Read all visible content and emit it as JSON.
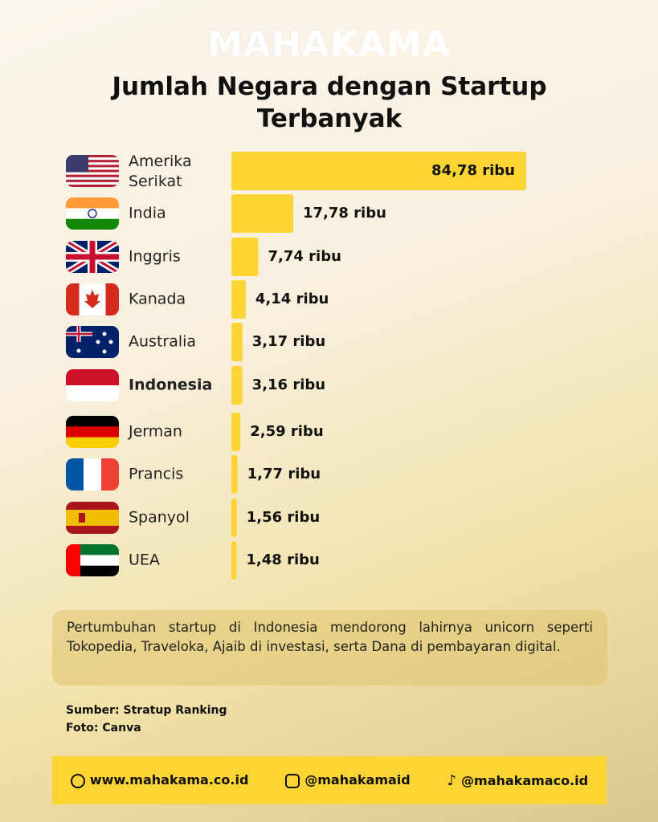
{
  "logo_parts": [
    "MAHA",
    "KAMA"
  ],
  "chart_data": {
    "type": "bar",
    "orientation": "horizontal",
    "title": "Jumlah Negara dengan Startup Terbanyak",
    "categories": [
      "Amerika Serikat",
      "India",
      "Inggris",
      "Kanada",
      "Australia",
      "Indonesia",
      "Jerman",
      "Prancis",
      "Spanyol",
      "UEA"
    ],
    "values": [
      84.78,
      17.78,
      7.74,
      4.14,
      3.17,
      3.16,
      2.59,
      1.77,
      1.56,
      1.48
    ],
    "value_labels": [
      "84,78 ribu",
      "17,78 ribu",
      "7,74 ribu",
      "4,14 ribu",
      "3,17 ribu",
      "3,16 ribu",
      "2,59 ribu",
      "1,77 ribu",
      "1,56 ribu",
      "1,48 ribu"
    ],
    "color": "#fcd535",
    "highlight_index": 5
  },
  "note": "Pertumbuhan startup di Indonesia mendorong lahirnya unicorn seperti Tokopedia, Traveloka, Ajaib di investasi, serta Dana di pembayaran digital.",
  "sources": [
    "Sumber: Stratup Ranking",
    "Foto: Canva"
  ],
  "footer": {
    "website": "www.mahakama.co.id",
    "instagram": "@mahakamaid",
    "tiktok": "@mahakamaco.id"
  }
}
